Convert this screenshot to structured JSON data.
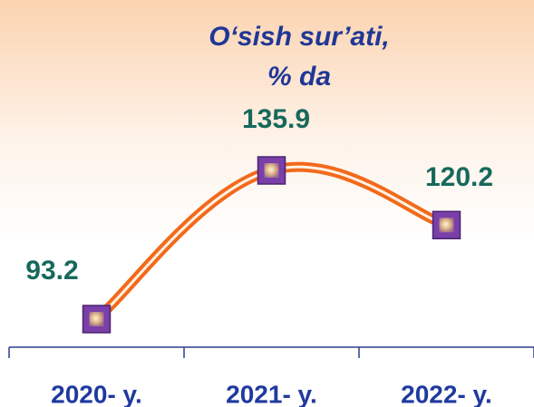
{
  "chart_data": {
    "type": "line",
    "title": [
      "O‘sish sur’ati,",
      "% da"
    ],
    "categories": [
      "2020- y.",
      "2021- y.",
      "2022- y."
    ],
    "values": [
      93.2,
      135.9,
      120.2
    ],
    "color": "#f26a1b",
    "marker_color": "#7a3fa8"
  }
}
